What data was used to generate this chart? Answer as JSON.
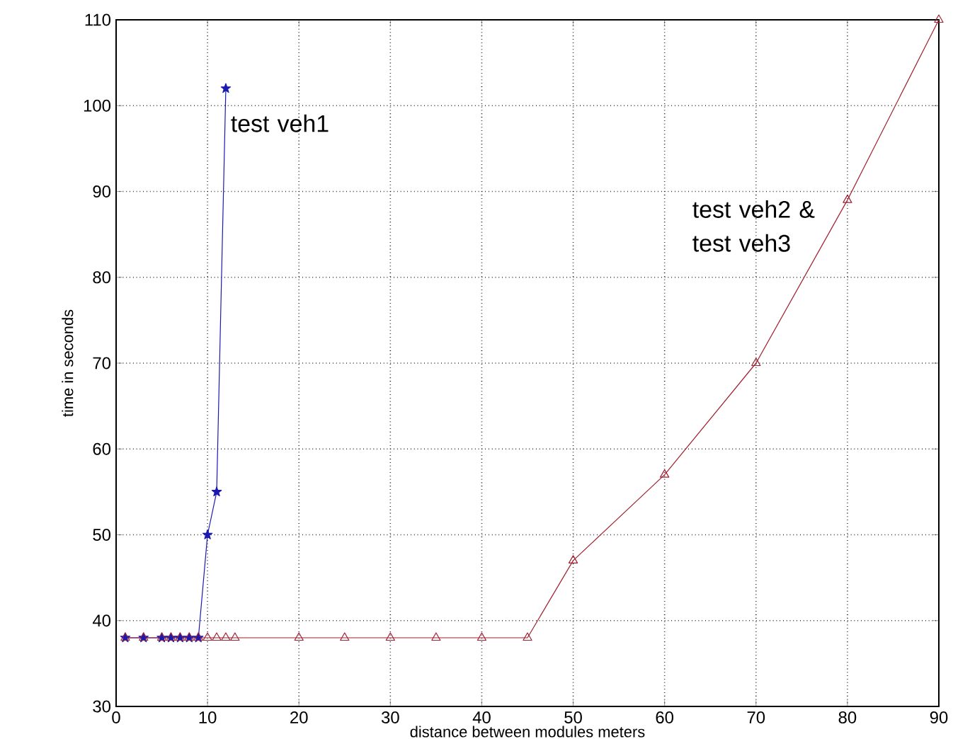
{
  "chart_data": {
    "type": "line",
    "xlabel": "distance between modules meters",
    "ylabel": "time in seconds",
    "xlim": [
      0,
      90
    ],
    "ylim": [
      30,
      110
    ],
    "xticks": [
      0,
      10,
      20,
      30,
      40,
      50,
      60,
      70,
      80,
      90
    ],
    "yticks": [
      30,
      40,
      50,
      60,
      70,
      80,
      90,
      100,
      110
    ],
    "grid": true,
    "series": [
      {
        "name": "test veh1",
        "color": "#1a1ab0",
        "marker": "star",
        "x": [
          1,
          3,
          5,
          6,
          7,
          8,
          9,
          10,
          11,
          12
        ],
        "values": [
          38,
          38,
          38,
          38,
          38,
          38,
          38,
          50,
          55,
          102
        ]
      },
      {
        "name": "test veh2 & test veh3",
        "color": "#a02030",
        "marker": "triangle",
        "x": [
          1,
          3,
          5,
          6,
          7,
          8,
          9,
          10,
          11,
          12,
          13,
          20,
          25,
          30,
          35,
          40,
          45,
          50,
          60,
          70,
          80,
          90
        ],
        "values": [
          38,
          38,
          38,
          38,
          38,
          38,
          38,
          38,
          38,
          38,
          38,
          38,
          38,
          38,
          38,
          38,
          38,
          47,
          57,
          70,
          89,
          110
        ]
      }
    ]
  }
}
